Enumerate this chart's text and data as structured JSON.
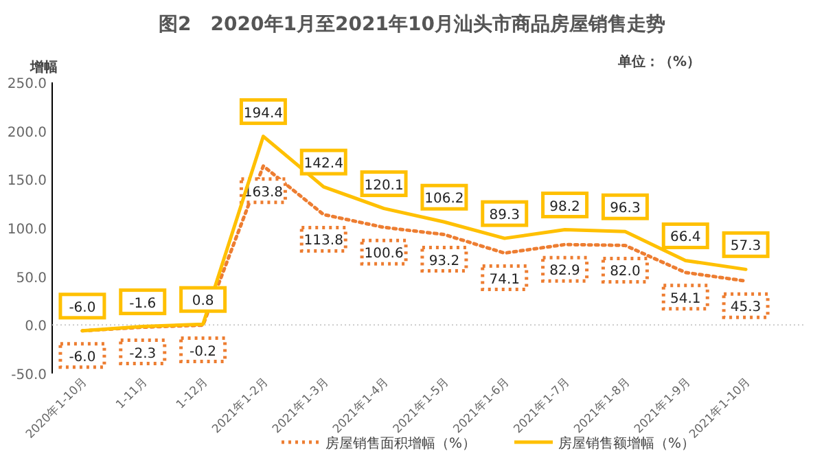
{
  "chart_data": {
    "type": "line",
    "title": "图2　2020年1月至2021年10月汕头市商品房屋销售走势",
    "ylabel": "增幅",
    "annotations": [
      "单位：（%）"
    ],
    "categories": [
      "2020年1-10月",
      "1-11月",
      "1-12月",
      "2021年1-2月",
      "2021年1-3月",
      "2021年1-4月",
      "2021年1-5月",
      "2021年1-6月",
      "2021年1-7月",
      "2021年1-8月",
      "2021年1-9月",
      "2021年1-10月"
    ],
    "series": [
      {
        "name": "房屋销售面积增幅（%）",
        "color": "#ed7d31",
        "line_style": "dotted",
        "values": [
          -6.0,
          -2.3,
          -0.2,
          163.8,
          113.8,
          100.6,
          93.2,
          74.1,
          82.9,
          82.0,
          54.1,
          45.3
        ],
        "value_labels": [
          "-6.0",
          "-2.3",
          "-0.2",
          "163.8",
          "113.8",
          "100.6",
          "93.2",
          "74.1",
          "82.9",
          "82.0",
          "54.1",
          "45.3"
        ]
      },
      {
        "name": "房屋销售额增幅（%）",
        "color": "#ffc000",
        "line_style": "solid",
        "values": [
          -6.0,
          -1.6,
          0.8,
          194.4,
          142.4,
          120.1,
          106.2,
          89.3,
          98.2,
          96.3,
          66.4,
          57.3
        ],
        "value_labels": [
          "-6.0",
          "-1.6",
          "0.8",
          "194.4",
          "142.4",
          "120.1",
          "106.2",
          "89.3",
          "98.2",
          "96.3",
          "66.4",
          "57.3"
        ]
      }
    ],
    "ylim": [
      -50,
      250
    ],
    "yticks": [
      {
        "value": -50,
        "label": "-50.0"
      },
      {
        "value": 0,
        "label": "0.0"
      },
      {
        "value": 50,
        "label": "50.0"
      },
      {
        "value": 100,
        "label": "100.0"
      },
      {
        "value": 150,
        "label": "150.0"
      },
      {
        "value": 200,
        "label": "200.0"
      },
      {
        "value": 250,
        "label": "250.0"
      }
    ],
    "legend": "bottom",
    "marker": "none"
  }
}
